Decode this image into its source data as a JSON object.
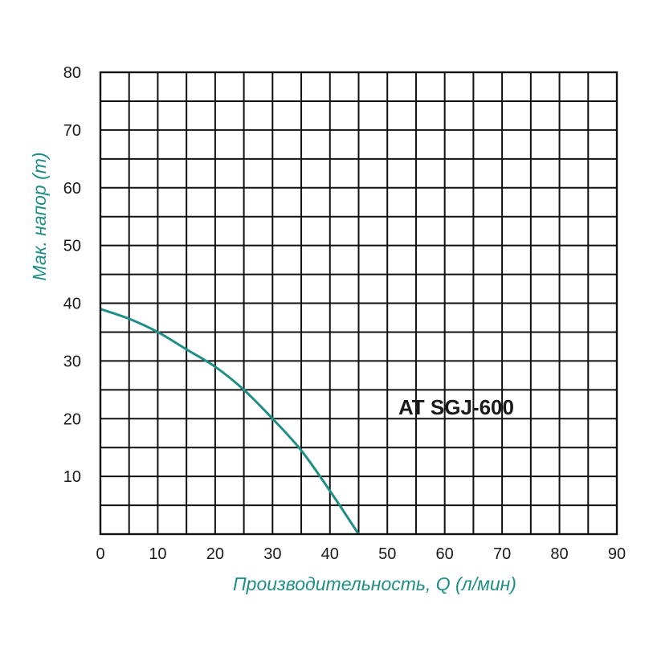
{
  "chart_data": {
    "type": "line",
    "xlabel": "Производительность, Q (л/мин)",
    "ylabel": "Мак. напор (m)",
    "xlim": [
      0,
      90
    ],
    "ylim": [
      0,
      80
    ],
    "x_ticks": [
      "0",
      "10",
      "20",
      "30",
      "40",
      "50",
      "60",
      "70",
      "80",
      "90"
    ],
    "y_ticks": [
      "10",
      "20",
      "30",
      "40",
      "50",
      "60",
      "70",
      "80"
    ],
    "grid": true,
    "annotations": [
      {
        "text": "AT SGJ-600",
        "x": 62,
        "y": 22
      }
    ],
    "series": [
      {
        "color": "#1f8f86",
        "x": [
          0,
          5,
          10,
          15,
          20,
          25,
          30,
          35,
          40,
          45
        ],
        "y": [
          39,
          37.3,
          35,
          32,
          29,
          25,
          20,
          14.5,
          7.5,
          0
        ]
      }
    ]
  }
}
